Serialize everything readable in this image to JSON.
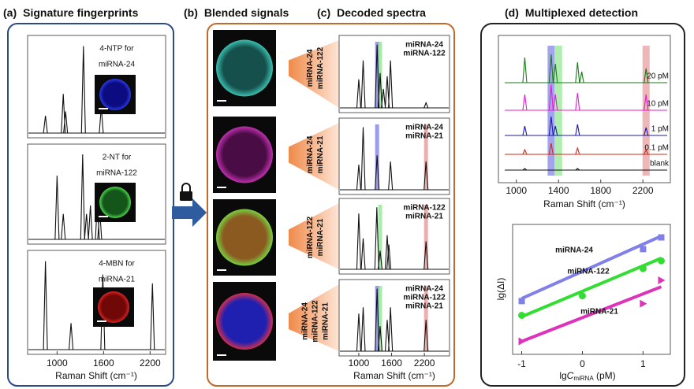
{
  "panel_a": {
    "label": "(a)",
    "title": "Signature fingerprints",
    "xlim": [
      620,
      2400
    ],
    "xticks": [
      1000,
      1600,
      2200
    ],
    "xlabel": "Raman Shift (cm⁻¹)",
    "spectra": [
      {
        "lines": [
          "4-NTP for",
          "miRNA-24"
        ],
        "image_colors": [
          "#0c0c80",
          "#2a3ae8"
        ],
        "peaks": [
          {
            "x": 850,
            "h": 0.2
          },
          {
            "x": 1080,
            "h": 0.45
          },
          {
            "x": 1110,
            "h": 0.25
          },
          {
            "x": 1340,
            "h": 1.0
          },
          {
            "x": 1570,
            "h": 0.3
          }
        ]
      },
      {
        "lines": [
          "2-NT for",
          "miRNA-122"
        ],
        "image_colors": [
          "#14561a",
          "#4ad84a"
        ],
        "peaks": [
          {
            "x": 1000,
            "h": 0.75
          },
          {
            "x": 1080,
            "h": 0.3
          },
          {
            "x": 1330,
            "h": 1.0
          },
          {
            "x": 1380,
            "h": 0.3
          },
          {
            "x": 1430,
            "h": 0.4
          },
          {
            "x": 1520,
            "h": 0.45
          },
          {
            "x": 1550,
            "h": 0.35
          }
        ]
      },
      {
        "lines": [
          "4-MBN for",
          "miRNA-21"
        ],
        "image_colors": [
          "#700808",
          "#e02020"
        ],
        "peaks": [
          {
            "x": 850,
            "h": 1.0
          },
          {
            "x": 1180,
            "h": 0.3
          },
          {
            "x": 1590,
            "h": 0.85
          },
          {
            "x": 2230,
            "h": 0.75
          }
        ]
      }
    ]
  },
  "panel_b": {
    "label": "(b)",
    "title": "Blended signals",
    "images": [
      {
        "targets": [
          "miRNA-24",
          "miRNA-122"
        ],
        "colors": [
          "#16504c",
          "#3ac0b0"
        ]
      },
      {
        "targets": [
          "miRNA-24",
          "miRNA-21"
        ],
        "colors": [
          "#4a0c44",
          "#c030b0"
        ]
      },
      {
        "targets": [
          "miRNA-122",
          "miRNA-21"
        ],
        "colors": [
          "#8a5a20",
          "#7ad040"
        ]
      },
      {
        "targets": [
          "miRNA-24",
          "miRNA-122",
          "miRNA-21"
        ],
        "colors": [
          "#2020b0",
          "#d03050"
        ]
      }
    ]
  },
  "panel_c": {
    "label": "(c)",
    "title": "Decoded spectra",
    "xlim": [
      640,
      2660
    ],
    "xticks": [
      1000,
      1600,
      2200
    ],
    "xlabel": "Raman Shift (cm⁻¹)",
    "spectra": [
      {
        "legend": [
          {
            "text": "miRNA-24",
            "color": "#9b4fd6"
          },
          {
            "text": "miRNA-122",
            "color": "#1e9e2a"
          }
        ],
        "bands": [
          {
            "x": 1335,
            "color": "#5a5ae0"
          },
          {
            "x": 1390,
            "color": "#6ee06e"
          }
        ],
        "peaks": [
          {
            "x": 1000,
            "h": 0.45
          },
          {
            "x": 1080,
            "h": 0.75
          },
          {
            "x": 1335,
            "h": 1.0
          },
          {
            "x": 1390,
            "h": 0.55
          },
          {
            "x": 1450,
            "h": 0.3
          },
          {
            "x": 1520,
            "h": 0.5
          },
          {
            "x": 1580,
            "h": 0.75
          },
          {
            "x": 2230,
            "h": 0.08
          }
        ]
      },
      {
        "legend": [
          {
            "text": "miRNA-24",
            "color": "#9b4fd6"
          },
          {
            "text": "miRNA-21",
            "color": "#c8203c"
          }
        ],
        "bands": [
          {
            "x": 1335,
            "color": "#5a5ae0"
          },
          {
            "x": 2230,
            "color": "#e07a7a"
          }
        ],
        "peaks": [
          {
            "x": 1000,
            "h": 0.4
          },
          {
            "x": 1080,
            "h": 1.0
          },
          {
            "x": 1335,
            "h": 0.55
          },
          {
            "x": 1580,
            "h": 0.45
          },
          {
            "x": 2230,
            "h": 0.45
          }
        ]
      },
      {
        "legend": [
          {
            "text": "miRNA-122",
            "color": "#1e9e2a"
          },
          {
            "text": "miRNA-21",
            "color": "#c8203c"
          }
        ],
        "bands": [
          {
            "x": 1390,
            "color": "#6ee06e"
          },
          {
            "x": 2230,
            "color": "#e07a7a"
          }
        ],
        "peaks": [
          {
            "x": 1000,
            "h": 0.9
          },
          {
            "x": 1080,
            "h": 0.5
          },
          {
            "x": 1330,
            "h": 1.0
          },
          {
            "x": 1390,
            "h": 0.3
          },
          {
            "x": 1520,
            "h": 0.55
          },
          {
            "x": 1550,
            "h": 0.4
          },
          {
            "x": 2230,
            "h": 0.45
          }
        ]
      },
      {
        "legend": [
          {
            "text": "miRNA-24",
            "color": "#9b4fd6"
          },
          {
            "text": "miRNA-122",
            "color": "#1e9e2a"
          },
          {
            "text": "miRNA-21",
            "color": "#c8203c"
          }
        ],
        "bands": [
          {
            "x": 1335,
            "color": "#5a5ae0"
          },
          {
            "x": 1390,
            "color": "#6ee06e"
          },
          {
            "x": 2230,
            "color": "#e07a7a"
          }
        ],
        "peaks": [
          {
            "x": 1000,
            "h": 0.6
          },
          {
            "x": 1080,
            "h": 0.7
          },
          {
            "x": 1335,
            "h": 1.0
          },
          {
            "x": 1390,
            "h": 0.4
          },
          {
            "x": 1520,
            "h": 0.5
          },
          {
            "x": 1580,
            "h": 0.7
          },
          {
            "x": 2230,
            "h": 0.5
          }
        ]
      }
    ]
  },
  "panel_d": {
    "label": "(d)",
    "title": "Multiplexed  detection",
    "spectra_chart": {
      "xlim": [
        830,
        2460
      ],
      "xticks": [
        1000,
        1400,
        1800,
        2200
      ],
      "xlabel": "Raman Shift (cm⁻¹)",
      "bands": [
        {
          "x": 1330,
          "color": "#5a5ae0"
        },
        {
          "x": 1400,
          "color": "#6ee06e"
        },
        {
          "x": 2230,
          "color": "#e07a7a"
        }
      ],
      "traces": [
        {
          "name": "20 pM",
          "color": "#1a7a1a",
          "peaks": [
            {
              "x": 1080,
              "h": 0.8
            },
            {
              "x": 1330,
              "h": 0.9
            },
            {
              "x": 1370,
              "h": 0.6
            },
            {
              "x": 1580,
              "h": 0.65
            },
            {
              "x": 1620,
              "h": 0.35
            },
            {
              "x": 2230,
              "h": 0.45
            }
          ]
        },
        {
          "name": "10 pM",
          "color": "#e020d0",
          "peaks": [
            {
              "x": 1080,
              "h": 0.5
            },
            {
              "x": 1330,
              "h": 0.8
            },
            {
              "x": 1370,
              "h": 0.5
            },
            {
              "x": 1580,
              "h": 0.55
            },
            {
              "x": 2230,
              "h": 0.5
            }
          ]
        },
        {
          "name": "1 pM",
          "color": "#1a1ab0",
          "peaks": [
            {
              "x": 1080,
              "h": 0.3
            },
            {
              "x": 1330,
              "h": 0.6
            },
            {
              "x": 1370,
              "h": 0.3
            },
            {
              "x": 1580,
              "h": 0.35
            },
            {
              "x": 2230,
              "h": 0.25
            }
          ]
        },
        {
          "name": "0.1 pM",
          "color": "#d02a1a",
          "peaks": [
            {
              "x": 1080,
              "h": 0.15
            },
            {
              "x": 1330,
              "h": 0.35
            },
            {
              "x": 1580,
              "h": 0.2
            },
            {
              "x": 2230,
              "h": 0.15
            }
          ]
        },
        {
          "name": "blank",
          "color": "#111111",
          "peaks": [
            {
              "x": 1080,
              "h": 0.05
            },
            {
              "x": 1580,
              "h": 0.05
            }
          ]
        }
      ]
    },
    "calib_chart": {
      "type": "scatter",
      "xlim": [
        -1.15,
        1.45
      ],
      "ylim": [
        0,
        1
      ],
      "xticks": [
        -1,
        0,
        1
      ],
      "xlabel_parts": [
        "lg",
        "C",
        "miRNA",
        " (pM)"
      ],
      "ylabel": "lg(ΔI)",
      "series": [
        {
          "name": "miRNA-24",
          "color": "#8080e8",
          "marker": "square",
          "x": [
            -1,
            1,
            1.3
          ],
          "values": [
            0.41,
            0.81,
            0.9
          ],
          "fit": {
            "x": [
              -1,
              1.3
            ],
            "y": [
              0.43,
              0.91
            ]
          }
        },
        {
          "name": "miRNA-122",
          "color": "#33dd33",
          "marker": "circle",
          "x": [
            -1,
            0,
            1,
            1.3
          ],
          "values": [
            0.3,
            0.45,
            0.66,
            0.72
          ],
          "fit": {
            "x": [
              -1,
              1.3
            ],
            "y": [
              0.29,
              0.74
            ]
          }
        },
        {
          "name": "miRNA-21",
          "color": "#dd33bb",
          "marker": "triangle",
          "x": [
            -1,
            1,
            1.3
          ],
          "values": [
            0.1,
            0.39,
            0.57
          ],
          "fit": {
            "x": [
              -1,
              1.3
            ],
            "y": [
              0.1,
              0.52
            ]
          }
        }
      ]
    }
  }
}
